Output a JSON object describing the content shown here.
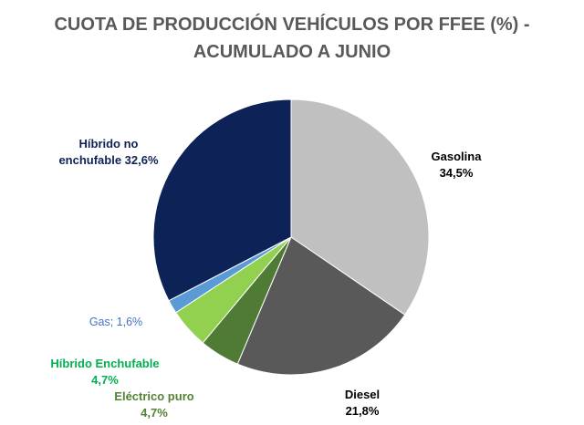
{
  "chart_data": {
    "type": "pie",
    "title": [
      "CUOTA DE PRODUCCIÓN VEHÍCULOS POR FFEE (%)  -",
      "ACUMULADO A JUNIO"
    ],
    "slices": [
      {
        "name": "Gasolina",
        "value": 34.5,
        "color": "#c0c0c0",
        "label_lines": [
          "Gasolina",
          "34,5%"
        ],
        "label_color": "#000000"
      },
      {
        "name": "Diesel",
        "value": 21.8,
        "color": "#595959",
        "label_lines": [
          "Diesel",
          "21,8%"
        ],
        "label_color": "#000000"
      },
      {
        "name": "Eléctrico puro",
        "value": 4.7,
        "color": "#4f7b34",
        "label_lines": [
          "Eléctrico puro",
          "4,7%"
        ],
        "label_color": "#548235"
      },
      {
        "name": "Híbrido Enchufable",
        "value": 4.7,
        "color": "#92d050",
        "label_lines": [
          "Híbrido Enchufable",
          "4,7%"
        ],
        "label_color": "#00b050"
      },
      {
        "name": "Gas",
        "value": 1.6,
        "color": "#5b9bd5",
        "label_lines": [
          "Gas; 1,6%"
        ],
        "label_color": "#4472c4"
      },
      {
        "name": "Híbrido no enchufable",
        "value": 32.6,
        "color": "#0d2257",
        "label_lines": [
          "Híbrido no",
          "enchufable 32,6%"
        ],
        "label_color": "#0d2257"
      }
    ]
  }
}
